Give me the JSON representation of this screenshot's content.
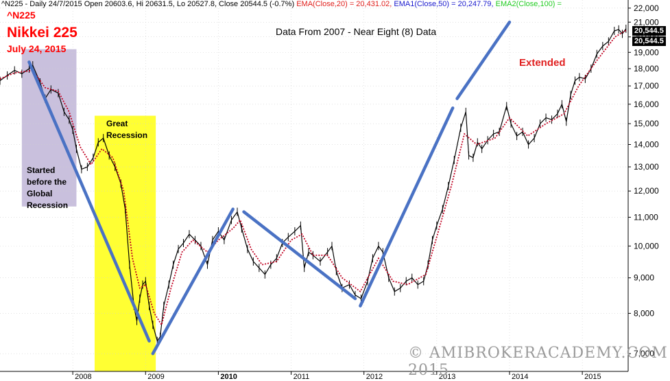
{
  "header": {
    "symbol_info": "^N225 - Daily 24/7/2015 Open 20603.6, Hi 20631.5, Lo 20527.8, Close 20544.5 (-0.7%)",
    "ema20": "EMA(Close,20) = 20,431.02,",
    "ema50": "EMA1(Close,50) = 20,247.79,",
    "ema100": "EMA2(Close,100) =",
    "colors": {
      "ema20": "#e0201c",
      "ema50": "#1a1acd",
      "ema100": "#22cc22"
    }
  },
  "ticker": "^N225",
  "title": "Nikkei 225",
  "date": "July 24, 2015",
  "subtitle": "Data From 2007 - Near Eight (8) Data",
  "annotations": {
    "great_recession": [
      "Great",
      "Recession"
    ],
    "started": [
      "Started",
      "before the",
      "Global",
      "Recession"
    ],
    "extended": "Extended"
  },
  "watermark": "© AMIBROKERACADEMY.COM 2015",
  "price_labels": [
    "20,544.5",
    "20,544.5"
  ],
  "chart_data": {
    "type": "line",
    "title": "Nikkei 225",
    "x_axis": {
      "type": "time",
      "min": 2007.0,
      "max": 2015.63,
      "tick_labels": [
        "2008",
        "2009",
        "2010",
        "2011",
        "2012",
        "2013",
        "2014",
        "2015"
      ]
    },
    "y_axis": {
      "scale": "log",
      "min": 6600,
      "max": 22600,
      "side": "right",
      "ticks": [
        7000,
        8000,
        9000,
        10000,
        11000,
        12000,
        13000,
        14000,
        15000,
        16000,
        17000,
        18000,
        19000,
        20000,
        21000,
        22000
      ],
      "tick_labels": [
        "7,000",
        "8,000",
        "9,000",
        "10,000",
        "11,000",
        "12,000",
        "13,000",
        "14,000",
        "15,000",
        "16,000",
        "17,000",
        "18,000",
        "19,000",
        "20,000",
        "21,000",
        "22,000"
      ]
    },
    "grid": true,
    "series": [
      {
        "kind": "price",
        "color": "#000000",
        "points": [
          [
            2007.0,
            17300
          ],
          [
            2007.1,
            17600
          ],
          [
            2007.2,
            17900
          ],
          [
            2007.3,
            17700
          ],
          [
            2007.4,
            18000
          ],
          [
            2007.45,
            18200
          ],
          [
            2007.55,
            17200
          ],
          [
            2007.62,
            16300
          ],
          [
            2007.7,
            16800
          ],
          [
            2007.8,
            16600
          ],
          [
            2007.88,
            15600
          ],
          [
            2007.95,
            15200
          ],
          [
            2008.0,
            14700
          ],
          [
            2008.05,
            13800
          ],
          [
            2008.12,
            12900
          ],
          [
            2008.2,
            13000
          ],
          [
            2008.28,
            13400
          ],
          [
            2008.35,
            14100
          ],
          [
            2008.42,
            14300
          ],
          [
            2008.5,
            13500
          ],
          [
            2008.58,
            13000
          ],
          [
            2008.66,
            12300
          ],
          [
            2008.72,
            11300
          ],
          [
            2008.78,
            9400
          ],
          [
            2008.84,
            8200
          ],
          [
            2008.88,
            7800
          ],
          [
            2008.92,
            8400
          ],
          [
            2008.96,
            8800
          ],
          [
            2009.0,
            8900
          ],
          [
            2009.05,
            8200
          ],
          [
            2009.1,
            7700
          ],
          [
            2009.16,
            7300
          ],
          [
            2009.2,
            7400
          ],
          [
            2009.25,
            8200
          ],
          [
            2009.32,
            8800
          ],
          [
            2009.38,
            9400
          ],
          [
            2009.45,
            9900
          ],
          [
            2009.52,
            10100
          ],
          [
            2009.6,
            10400
          ],
          [
            2009.68,
            10200
          ],
          [
            2009.76,
            10000
          ],
          [
            2009.85,
            9400
          ],
          [
            2009.92,
            10200
          ],
          [
            2010.0,
            10500
          ],
          [
            2010.08,
            10200
          ],
          [
            2010.18,
            10900
          ],
          [
            2010.26,
            11200
          ],
          [
            2010.32,
            10600
          ],
          [
            2010.4,
            9900
          ],
          [
            2010.48,
            9500
          ],
          [
            2010.56,
            9300
          ],
          [
            2010.64,
            9100
          ],
          [
            2010.72,
            9400
          ],
          [
            2010.8,
            9600
          ],
          [
            2010.88,
            10100
          ],
          [
            2010.96,
            10300
          ],
          [
            2011.05,
            10500
          ],
          [
            2011.13,
            10700
          ],
          [
            2011.18,
            9300
          ],
          [
            2011.24,
            9800
          ],
          [
            2011.3,
            9700
          ],
          [
            2011.4,
            9500
          ],
          [
            2011.5,
            9800
          ],
          [
            2011.56,
            10000
          ],
          [
            2011.62,
            9200
          ],
          [
            2011.7,
            8700
          ],
          [
            2011.8,
            8800
          ],
          [
            2011.88,
            8500
          ],
          [
            2011.96,
            8400
          ],
          [
            2012.05,
            8900
          ],
          [
            2012.12,
            9600
          ],
          [
            2012.2,
            10000
          ],
          [
            2012.26,
            9800
          ],
          [
            2012.34,
            9000
          ],
          [
            2012.42,
            8600
          ],
          [
            2012.5,
            8700
          ],
          [
            2012.58,
            8900
          ],
          [
            2012.66,
            9000
          ],
          [
            2012.74,
            8800
          ],
          [
            2012.82,
            8900
          ],
          [
            2012.88,
            9400
          ],
          [
            2012.94,
            10200
          ],
          [
            2013.0,
            10700
          ],
          [
            2013.08,
            11300
          ],
          [
            2013.16,
            12200
          ],
          [
            2013.24,
            13300
          ],
          [
            2013.33,
            14800
          ],
          [
            2013.4,
            15600
          ],
          [
            2013.44,
            13500
          ],
          [
            2013.5,
            13400
          ],
          [
            2013.56,
            14100
          ],
          [
            2013.62,
            13800
          ],
          [
            2013.7,
            14200
          ],
          [
            2013.78,
            14500
          ],
          [
            2013.86,
            14600
          ],
          [
            2013.96,
            15900
          ],
          [
            2014.02,
            15000
          ],
          [
            2014.1,
            14400
          ],
          [
            2014.18,
            14600
          ],
          [
            2014.26,
            14000
          ],
          [
            2014.34,
            14300
          ],
          [
            2014.42,
            15000
          ],
          [
            2014.5,
            15300
          ],
          [
            2014.58,
            15200
          ],
          [
            2014.66,
            15500
          ],
          [
            2014.72,
            16000
          ],
          [
            2014.78,
            15100
          ],
          [
            2014.84,
            16500
          ],
          [
            2014.9,
            17300
          ],
          [
            2014.96,
            17500
          ],
          [
            2015.04,
            17400
          ],
          [
            2015.12,
            18000
          ],
          [
            2015.2,
            18900
          ],
          [
            2015.28,
            19400
          ],
          [
            2015.36,
            19700
          ],
          [
            2015.44,
            20400
          ],
          [
            2015.5,
            20500
          ],
          [
            2015.55,
            20200
          ],
          [
            2015.6,
            20544.5
          ]
        ]
      },
      {
        "kind": "ema",
        "color": "#c00020",
        "dashed": true,
        "points": [
          [
            2007.0,
            17400
          ],
          [
            2007.2,
            17750
          ],
          [
            2007.45,
            17900
          ],
          [
            2007.62,
            16900
          ],
          [
            2007.8,
            16700
          ],
          [
            2007.95,
            15600
          ],
          [
            2008.1,
            13900
          ],
          [
            2008.25,
            13100
          ],
          [
            2008.4,
            13800
          ],
          [
            2008.55,
            13400
          ],
          [
            2008.7,
            12000
          ],
          [
            2008.82,
            9600
          ],
          [
            2008.92,
            8700
          ],
          [
            2009.0,
            8800
          ],
          [
            2009.12,
            8000
          ],
          [
            2009.22,
            7700
          ],
          [
            2009.35,
            8700
          ],
          [
            2009.5,
            9800
          ],
          [
            2009.65,
            10200
          ],
          [
            2009.85,
            9800
          ],
          [
            2010.0,
            10200
          ],
          [
            2010.2,
            10600
          ],
          [
            2010.3,
            10900
          ],
          [
            2010.45,
            9900
          ],
          [
            2010.6,
            9400
          ],
          [
            2010.8,
            9500
          ],
          [
            2011.0,
            10200
          ],
          [
            2011.15,
            10400
          ],
          [
            2011.3,
            9700
          ],
          [
            2011.5,
            9700
          ],
          [
            2011.7,
            9000
          ],
          [
            2011.95,
            8600
          ],
          [
            2012.2,
            9600
          ],
          [
            2012.4,
            8900
          ],
          [
            2012.6,
            8800
          ],
          [
            2012.85,
            9100
          ],
          [
            2013.0,
            10300
          ],
          [
            2013.2,
            12200
          ],
          [
            2013.38,
            14500
          ],
          [
            2013.55,
            14000
          ],
          [
            2013.8,
            14300
          ],
          [
            2014.0,
            15300
          ],
          [
            2014.25,
            14400
          ],
          [
            2014.5,
            15000
          ],
          [
            2014.75,
            15500
          ],
          [
            2014.95,
            17000
          ],
          [
            2015.2,
            18500
          ],
          [
            2015.45,
            20000
          ],
          [
            2015.6,
            20431.02
          ]
        ]
      }
    ],
    "trend_lines": [
      {
        "from": [
          2007.4,
          18400
        ],
        "to": [
          2009.05,
          7300
        ]
      },
      {
        "from": [
          2009.1,
          7000
        ],
        "to": [
          2010.2,
          11300
        ]
      },
      {
        "from": [
          2010.35,
          11200
        ],
        "to": [
          2011.88,
          8400
        ]
      },
      {
        "from": [
          2011.95,
          8200
        ],
        "to": [
          2013.22,
          15800
        ]
      },
      {
        "from": [
          2013.28,
          16300
        ],
        "to": [
          2014.0,
          21000
        ]
      }
    ],
    "highlight_regions": [
      {
        "name": "Started before the Global Recession",
        "x_from": 2007.3,
        "x_to": 2008.05,
        "y_from": 11400,
        "y_to": 19200,
        "color": "#c9c0dd"
      },
      {
        "name": "Great Recession",
        "x_from": 2008.3,
        "x_to": 2009.14,
        "y_from": 6600,
        "y_to": 15400,
        "color": "#ffff33"
      }
    ],
    "line_color_trend": "#4a72c4"
  }
}
